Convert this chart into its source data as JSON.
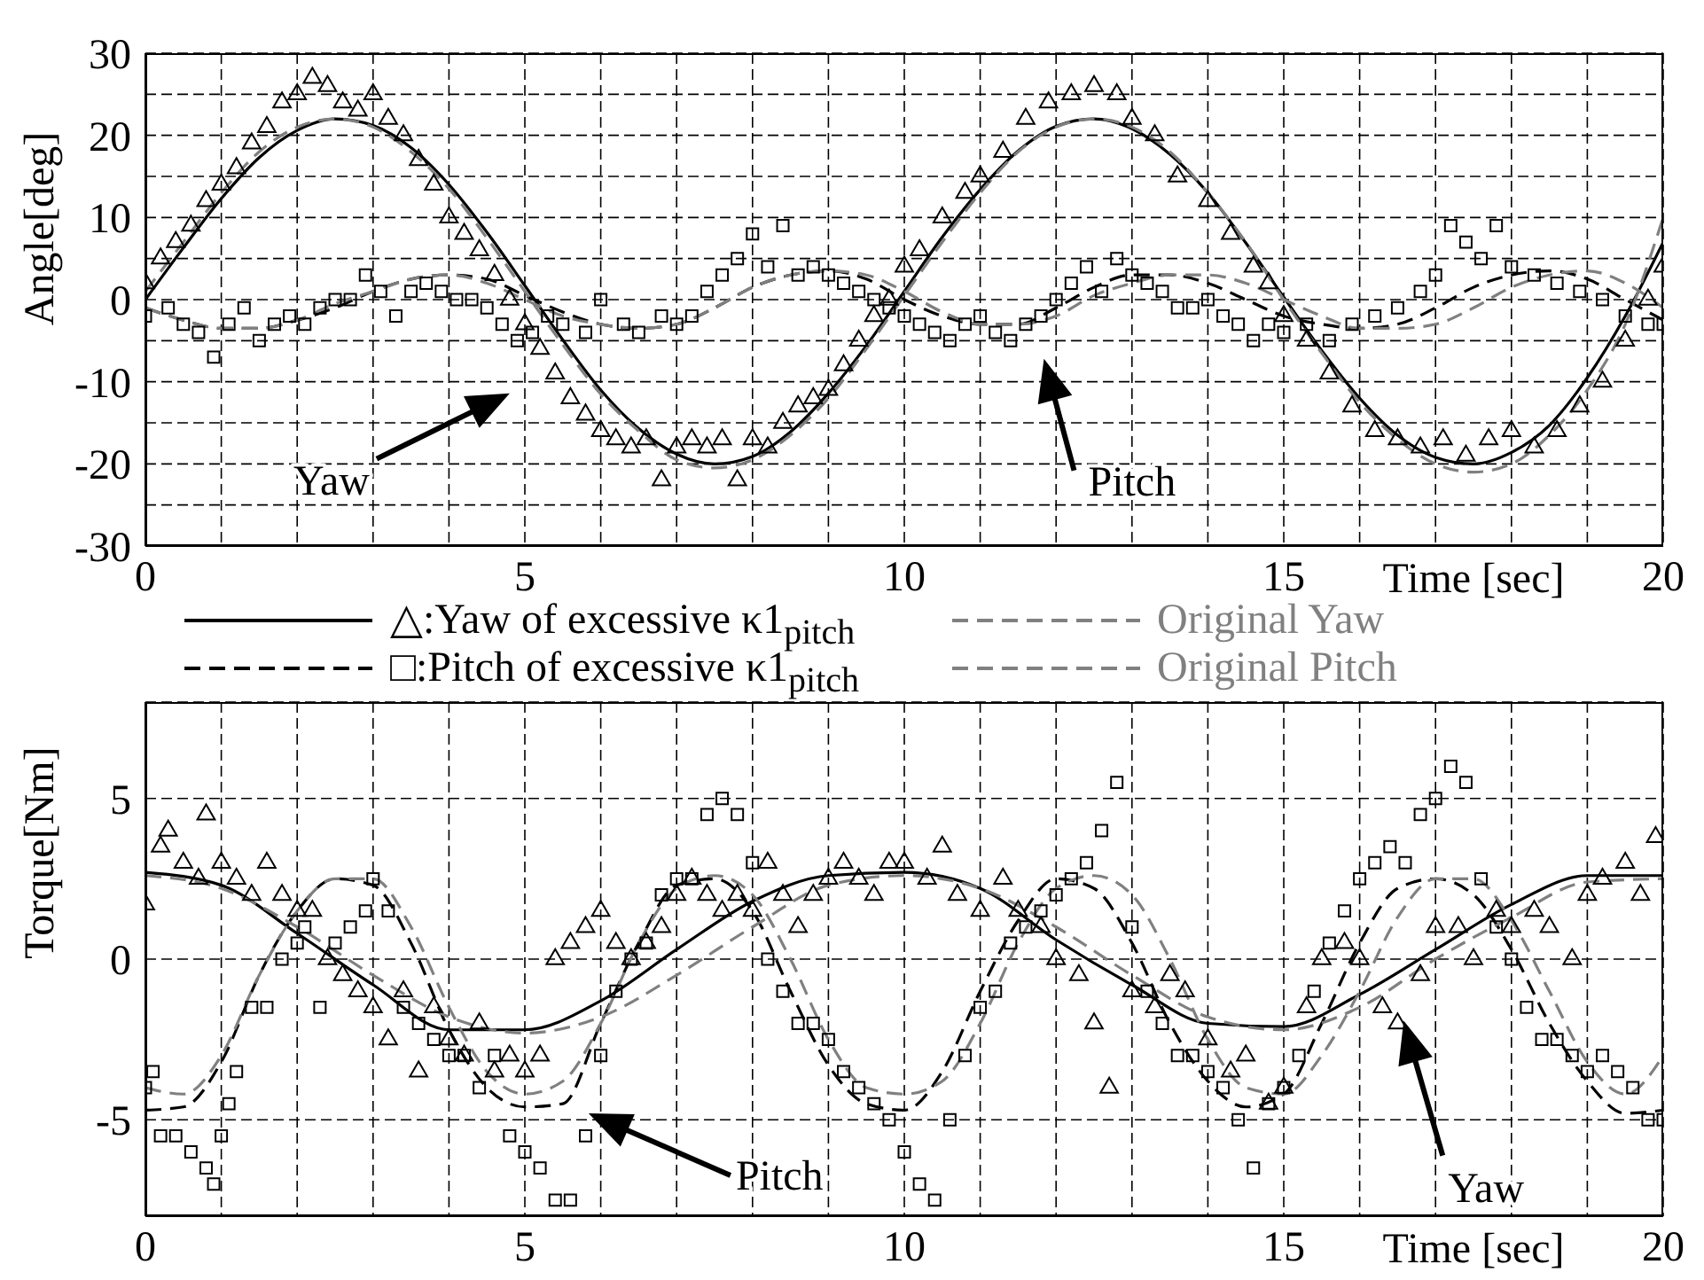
{
  "chart_data": [
    {
      "type": "line",
      "xlabel": "Time [sec]",
      "ylabel": "Angle[deg]",
      "xlim": [
        0,
        20
      ],
      "ylim": [
        -30,
        30
      ],
      "xticks": [
        0,
        {
          "value": 1,
          "label": null
        },
        {
          "value": 2,
          "label": null
        },
        {
          "value": 3,
          "label": null
        },
        {
          "value": 4,
          "label": null
        },
        5,
        {
          "value": 6,
          "label": null
        },
        {
          "value": 7,
          "label": null
        },
        {
          "value": 8,
          "label": null
        },
        {
          "value": 9,
          "label": null
        },
        10,
        {
          "value": 11,
          "label": null
        },
        {
          "value": 12,
          "label": null
        },
        {
          "value": 13,
          "label": null
        },
        {
          "value": 14,
          "label": null
        },
        15,
        {
          "value": 16,
          "label": null
        },
        {
          "value": 17,
          "label": null
        },
        {
          "value": 18,
          "label": null
        },
        {
          "value": 19,
          "label": null
        },
        20
      ],
      "yticks": [
        -30,
        {
          "value": -25,
          "label": null
        },
        -20,
        {
          "value": -15,
          "label": null
        },
        -10,
        {
          "value": -5,
          "label": null
        },
        0,
        {
          "value": 5,
          "label": null
        },
        10,
        {
          "value": 15,
          "label": null
        },
        20,
        {
          "value": 25,
          "label": null
        },
        30
      ],
      "grid": true,
      "x": [
        0,
        0.5,
        1,
        1.5,
        2,
        2.5,
        3,
        3.5,
        4,
        4.5,
        5,
        5.5,
        6,
        6.5,
        7,
        7.5,
        8,
        8.5,
        9,
        9.5,
        10,
        10.5,
        11,
        11.5,
        12,
        12.5,
        13,
        13.5,
        14,
        14.5,
        15,
        15.5,
        16,
        16.5,
        17,
        17.5,
        18,
        18.5,
        19,
        19.5,
        20
      ],
      "series": [
        {
          "type": "scatter",
          "marker": "triangle",
          "color": "#000000",
          "x": [
            0,
            0.2,
            0.4,
            0.6,
            0.8,
            1,
            1.2,
            1.4,
            1.6,
            1.8,
            2,
            2.2,
            2.4,
            2.6,
            2.8,
            3,
            3.2,
            3.4,
            3.6,
            3.8,
            4,
            4.2,
            4.4,
            4.6,
            4.8,
            5,
            5.2,
            5.4,
            5.6,
            5.8,
            6,
            6.2,
            6.4,
            6.6,
            6.8,
            7,
            7.2,
            7.4,
            7.6,
            7.8,
            8,
            8.2,
            8.4,
            8.6,
            8.8,
            9,
            9.2,
            9.4,
            9.6,
            9.8,
            10,
            10.2,
            10.5,
            10.8,
            11,
            11.3,
            11.6,
            11.9,
            12.2,
            12.5,
            12.8,
            13,
            13.3,
            13.6,
            14,
            14.3,
            14.6,
            14.8,
            15,
            15.3,
            15.6,
            15.9,
            16.2,
            16.5,
            16.8,
            17.1,
            17.4,
            17.7,
            18,
            18.3,
            18.6,
            18.9,
            19.2,
            19.5,
            19.8,
            20
          ],
          "values": [
            2,
            5,
            7,
            9,
            12,
            14,
            16,
            19,
            21,
            24,
            25,
            27,
            26,
            24,
            23,
            25,
            22,
            20,
            17,
            14,
            10,
            8,
            6,
            3,
            0,
            -3,
            -6,
            -9,
            -12,
            -14,
            -16,
            -17,
            -18,
            -17,
            -22,
            -18,
            -17,
            -18,
            -17,
            -22,
            -17,
            -18,
            -15,
            -13,
            -12,
            -11,
            -8,
            -5,
            -2,
            0,
            4,
            6,
            10,
            13,
            15,
            18,
            22,
            24,
            25,
            26,
            25,
            22,
            20,
            15,
            12,
            8,
            4,
            2,
            -2,
            -5,
            -9,
            -13,
            -16,
            -17,
            -18,
            -17,
            -19,
            -17,
            -16,
            -18,
            -16,
            -13,
            -10,
            -5,
            0,
            4
          ]
        },
        {
          "type": "scatter",
          "marker": "square",
          "color": "#000000",
          "x": [
            0,
            0.3,
            0.5,
            0.7,
            0.9,
            1.1,
            1.3,
            1.5,
            1.7,
            1.9,
            2.1,
            2.3,
            2.5,
            2.7,
            2.9,
            3.1,
            3.3,
            3.5,
            3.7,
            3.9,
            4.1,
            4.3,
            4.5,
            4.7,
            4.9,
            5.1,
            5.3,
            5.5,
            5.8,
            6,
            6.3,
            6.5,
            6.8,
            7,
            7.2,
            7.4,
            7.6,
            7.8,
            8,
            8.2,
            8.4,
            8.6,
            8.8,
            9,
            9.2,
            9.4,
            9.6,
            9.8,
            10,
            10.2,
            10.4,
            10.6,
            10.8,
            11,
            11.2,
            11.4,
            11.6,
            11.8,
            12,
            12.2,
            12.4,
            12.6,
            12.8,
            13,
            13.2,
            13.4,
            13.6,
            13.8,
            14,
            14.2,
            14.4,
            14.6,
            14.8,
            15,
            15.3,
            15.6,
            15.9,
            16.2,
            16.5,
            16.8,
            17,
            17.2,
            17.4,
            17.6,
            17.8,
            18,
            18.3,
            18.6,
            18.9,
            19.2,
            19.5,
            19.8,
            20
          ],
          "values": [
            -2,
            -1,
            -3,
            -4,
            -7,
            -3,
            -1,
            -5,
            -3,
            -2,
            -3,
            -1,
            0,
            0,
            3,
            1,
            -2,
            1,
            2,
            1,
            0,
            0,
            -1,
            -3,
            -5,
            -4,
            -2,
            -3,
            -4,
            0,
            -3,
            -4,
            -2,
            -3,
            -2,
            1,
            3,
            5,
            8,
            4,
            9,
            3,
            4,
            3,
            2,
            1,
            0,
            -1,
            -2,
            -3,
            -4,
            -5,
            -3,
            -2,
            -4,
            -5,
            -3,
            -2,
            0,
            2,
            4,
            1,
            5,
            3,
            2,
            1,
            -1,
            -1,
            0,
            -2,
            -3,
            -5,
            -3,
            -4,
            -3,
            -5,
            -3,
            -2,
            -1,
            1,
            3,
            9,
            7,
            5,
            9,
            4,
            3,
            2,
            1,
            0,
            -2,
            -3,
            -3
          ]
        },
        {
          "type": "line",
          "color": "#000000",
          "line_style": "solid",
          "values": [
            0,
            6.3,
            12.3,
            17.3,
            20.6,
            22,
            21.2,
            18.5,
            14,
            8.2,
            1.7,
            -4.9,
            -11,
            -15.7,
            -18.8,
            -20,
            -19.1,
            -16.1,
            -11.4,
            -5.6,
            1,
            7.6,
            13.4,
            18.1,
            21.1,
            22,
            20.8,
            17.7,
            13,
            6.9,
            0.3,
            -6.2,
            -12,
            -16.5,
            -19.2,
            -20,
            -18.6,
            -15.3,
            -9.5,
            -2,
            7
          ]
        },
        {
          "type": "line",
          "color": "#000000",
          "line_style": "dashed",
          "values": [
            -1,
            -2.5,
            -3.5,
            -3.5,
            -2.5,
            -1,
            1,
            2.5,
            3,
            2.5,
            0.5,
            -1.5,
            -3,
            -3.5,
            -3,
            -1,
            1.5,
            3,
            3.5,
            2.5,
            0,
            -2,
            -3,
            -3,
            -1,
            1.5,
            3,
            3,
            2,
            0,
            -2,
            -3,
            -3.5,
            -3,
            -1,
            1.5,
            3,
            3.5,
            2.5,
            0,
            -2.5
          ]
        },
        {
          "type": "line",
          "color": "#808080",
          "line_style": "dashed",
          "values": [
            1,
            7,
            13,
            18,
            21,
            22,
            21,
            18,
            13.5,
            7.5,
            1,
            -5.5,
            -11.5,
            -16,
            -19.5,
            -20.5,
            -19.5,
            -16.5,
            -12,
            -6,
            0.5,
            7,
            13,
            18,
            21,
            22,
            21,
            18,
            13,
            7,
            0,
            -6.5,
            -12.5,
            -17,
            -20,
            -21,
            -20,
            -16.5,
            -11,
            -3,
            10
          ]
        },
        {
          "type": "line",
          "color": "#808080",
          "line_style": "dashed",
          "values": [
            -1,
            -2.5,
            -3.5,
            -3.5,
            -2.5,
            -0.5,
            1,
            2.5,
            3,
            2,
            0,
            -2,
            -3,
            -3.5,
            -3,
            -1,
            1.5,
            3,
            3.5,
            3,
            1,
            -1.5,
            -3,
            -3,
            -2,
            0.5,
            2,
            3,
            3,
            2,
            0,
            -2,
            -3.5,
            -3.5,
            -3,
            -1,
            1.5,
            3,
            3.5,
            2,
            -1
          ]
        }
      ],
      "annotations": [
        "Yaw",
        "Pitch"
      ]
    },
    {
      "type": "line",
      "xlabel": "Time [sec]",
      "ylabel": "Torque[Nm]",
      "xlim": [
        0,
        20
      ],
      "ylim": [
        -8,
        8
      ],
      "xticks": [
        0,
        {
          "value": 1,
          "label": null
        },
        {
          "value": 2,
          "label": null
        },
        {
          "value": 3,
          "label": null
        },
        {
          "value": 4,
          "label": null
        },
        5,
        {
          "value": 6,
          "label": null
        },
        {
          "value": 7,
          "label": null
        },
        {
          "value": 8,
          "label": null
        },
        {
          "value": 9,
          "label": null
        },
        10,
        {
          "value": 11,
          "label": null
        },
        {
          "value": 12,
          "label": null
        },
        {
          "value": 13,
          "label": null
        },
        {
          "value": 14,
          "label": null
        },
        15,
        {
          "value": 16,
          "label": null
        },
        {
          "value": 17,
          "label": null
        },
        {
          "value": 18,
          "label": null
        },
        {
          "value": 19,
          "label": null
        },
        20
      ],
      "yticks": [
        -5,
        0,
        5
      ],
      "grid": true,
      "legend": "top",
      "x": [
        0,
        0.5,
        1,
        1.5,
        2,
        2.5,
        3,
        3.5,
        4,
        4.5,
        5,
        5.5,
        6,
        6.5,
        7,
        7.5,
        8,
        8.5,
        9,
        9.5,
        10,
        10.5,
        11,
        11.5,
        12,
        12.5,
        13,
        13.5,
        14,
        14.5,
        15,
        15.5,
        16,
        16.5,
        17,
        17.5,
        18,
        18.5,
        19,
        19.5,
        20
      ],
      "series": [
        {
          "type": "scatter",
          "marker": "triangle",
          "color": "#000000",
          "x": [
            0,
            0.2,
            0.3,
            0.5,
            0.7,
            0.8,
            1,
            1.2,
            1.4,
            1.6,
            1.8,
            2,
            2.2,
            2.4,
            2.6,
            2.8,
            3,
            3.2,
            3.4,
            3.6,
            3.8,
            4,
            4.2,
            4.4,
            4.6,
            4.8,
            5,
            5.2,
            5.4,
            5.6,
            5.8,
            6,
            6.2,
            6.4,
            6.6,
            6.8,
            7,
            7.2,
            7.4,
            7.6,
            7.8,
            8,
            8.2,
            8.4,
            8.6,
            8.8,
            9,
            9.2,
            9.4,
            9.6,
            9.8,
            10,
            10.3,
            10.5,
            10.7,
            11,
            11.3,
            11.5,
            11.8,
            12,
            12.3,
            12.5,
            12.7,
            13,
            13.3,
            13.5,
            13.7,
            14,
            14.3,
            14.5,
            14.8,
            15,
            15.3,
            15.5,
            15.8,
            16,
            16.3,
            16.5,
            16.8,
            17,
            17.3,
            17.5,
            17.8,
            18,
            18.3,
            18.5,
            18.8,
            19,
            19.2,
            19.5,
            19.7,
            19.9
          ],
          "values": [
            1.7,
            3.5,
            4,
            3,
            2.5,
            4.5,
            3,
            2.5,
            2,
            3,
            2,
            1.5,
            1.5,
            0,
            -0.5,
            -1,
            -1.5,
            -2.5,
            -1,
            -3.5,
            -1.5,
            -2.5,
            -3,
            -2,
            -3.5,
            -3,
            -3.5,
            -3,
            0,
            0.5,
            1,
            1.5,
            0.5,
            0,
            0.5,
            1,
            2,
            2.5,
            2,
            1.5,
            2,
            1.5,
            3,
            2,
            1,
            2,
            2.5,
            3,
            2.5,
            2,
            3,
            3,
            2.5,
            3.5,
            2,
            1.5,
            2.5,
            1.5,
            1,
            0,
            -0.5,
            -2,
            -4,
            -1,
            -1.5,
            -0.5,
            -1,
            -2.5,
            -3.5,
            -3,
            -4.5,
            -4,
            -1.5,
            0,
            0.5,
            0,
            -1.5,
            -2,
            -0.5,
            1,
            1,
            0,
            1.5,
            1,
            1.5,
            1,
            0,
            2,
            2.5,
            3,
            2,
            3.8
          ]
        },
        {
          "type": "scatter",
          "marker": "square",
          "color": "#000000",
          "x": [
            0,
            0.1,
            0.2,
            0.4,
            0.6,
            0.8,
            0.9,
            1,
            1.1,
            1.2,
            1.4,
            1.6,
            1.8,
            2,
            2.1,
            2.3,
            2.5,
            2.7,
            2.9,
            3,
            3.2,
            3.4,
            3.6,
            3.8,
            4,
            4.2,
            4.4,
            4.6,
            4.8,
            5,
            5.2,
            5.4,
            5.6,
            5.8,
            6,
            6.2,
            6.4,
            6.6,
            6.8,
            7,
            7.2,
            7.4,
            7.6,
            7.8,
            8,
            8.2,
            8.4,
            8.6,
            8.8,
            9,
            9.2,
            9.4,
            9.6,
            9.8,
            10,
            10.2,
            10.4,
            10.6,
            10.8,
            11,
            11.2,
            11.4,
            11.6,
            11.8,
            12,
            12.2,
            12.4,
            12.6,
            12.8,
            13,
            13.2,
            13.4,
            13.6,
            13.8,
            14,
            14.2,
            14.4,
            14.6,
            14.8,
            15,
            15.2,
            15.4,
            15.6,
            15.8,
            16,
            16.2,
            16.4,
            16.6,
            16.8,
            17,
            17.2,
            17.4,
            17.6,
            17.8,
            18,
            18.2,
            18.4,
            18.6,
            18.8,
            19,
            19.2,
            19.4,
            19.6,
            19.8,
            20
          ],
          "values": [
            -4,
            -3.5,
            -5.5,
            -5.5,
            -6,
            -6.5,
            -7,
            -5.5,
            -4.5,
            -3.5,
            -1.5,
            -1.5,
            0,
            0.5,
            1,
            -1.5,
            0.5,
            1,
            1.5,
            2.5,
            1.5,
            -1.5,
            -2,
            -2.5,
            -3,
            -3,
            -4,
            -3,
            -5.5,
            -6,
            -6.5,
            -7.5,
            -7.5,
            -5.5,
            -3,
            -1,
            0,
            0.5,
            2,
            2.5,
            2.5,
            4.5,
            5,
            4.5,
            3,
            0,
            -1,
            -2,
            -2,
            -2.5,
            -3.5,
            -4,
            -4.5,
            -5,
            -6,
            -7,
            -7.5,
            -5,
            -3,
            -1.5,
            -1,
            0.5,
            1,
            1.5,
            2,
            2.5,
            3,
            4,
            5.5,
            1,
            -1,
            -2,
            -3,
            -3,
            -3.5,
            -4,
            -5,
            -6.5,
            -4.5,
            -4,
            -3,
            -1,
            0.5,
            1.5,
            2.5,
            3,
            3.5,
            3,
            4.5,
            5,
            6,
            5.5,
            2.5,
            1,
            0,
            -1.5,
            -2.5,
            -2.5,
            -3,
            -3.5,
            -3,
            -3.5,
            -4,
            -5,
            -5
          ]
        },
        {
          "type": "line",
          "name": "△:Yaw of excessive κ1$_{pitch}$",
          "color": "#000000",
          "line_style": "solid",
          "x": [
            0,
            1,
            2,
            3,
            4,
            5,
            6,
            7,
            8,
            9,
            10,
            11,
            12,
            13,
            14,
            15,
            16,
            17,
            18,
            19,
            20
          ],
          "values": [
            2.7,
            2.3,
            0.8,
            -0.8,
            -2.2,
            -2.2,
            -1.3,
            0.3,
            1.8,
            2.6,
            2.7,
            2.2,
            0.6,
            -0.8,
            -2,
            -2.1,
            -1.1,
            0.3,
            1.7,
            2.6,
            2.6
          ]
        },
        {
          "type": "line",
          "name": "□:Pitch of excessive κ1$_{pitch}$",
          "color": "#000000",
          "line_style": "dashed",
          "values": [
            -4.7,
            -4.6,
            -3.2,
            -0.5,
            1.5,
            2.5,
            2.3,
            0.5,
            -2.2,
            -4,
            -4.6,
            -4.5,
            -2,
            0.5,
            2.3,
            2.5,
            1.5,
            -1,
            -3.3,
            -4.5,
            -4.7,
            -3.5,
            -1,
            1.2,
            2.5,
            2.2,
            0.5,
            -2,
            -3.8,
            -4.6,
            -4.2,
            -2,
            0.5,
            2.2,
            2.5,
            2,
            0.3,
            -2,
            -3.8,
            -4.8,
            -4.7
          ]
        },
        {
          "type": "line",
          "name": "Original Yaw",
          "color": "#808080",
          "line_style": "dashed",
          "x": [
            0,
            1,
            2,
            3,
            4,
            5,
            6,
            7,
            8,
            9,
            10,
            11,
            12,
            13,
            14,
            15,
            16,
            17,
            18,
            19,
            20
          ],
          "values": [
            2.6,
            2.2,
            1,
            -0.5,
            -1.8,
            -2.3,
            -1.8,
            -0.5,
            1,
            2.3,
            2.6,
            2.2,
            1,
            -0.5,
            -1.8,
            -2.2,
            -1.5,
            0,
            1.3,
            2.4,
            2.5
          ]
        },
        {
          "type": "line",
          "name": "Original Pitch",
          "color": "#808080",
          "line_style": "dashed",
          "values": [
            -4,
            -4.2,
            -3,
            -0.5,
            1.5,
            2.5,
            2.5,
            1,
            -1.5,
            -3.5,
            -4.2,
            -3.8,
            -2,
            0.5,
            2.2,
            2.6,
            2,
            0,
            -2.5,
            -4,
            -4.2,
            -3.8,
            -2,
            0.5,
            2.2,
            2.6,
            2,
            0,
            -2.5,
            -4,
            -4.2,
            -3,
            -1,
            1.3,
            2.5,
            2.5,
            1.2,
            -1,
            -3.2,
            -4.2,
            -3
          ]
        }
      ],
      "annotations": [
        "Pitch",
        "Yaw"
      ]
    }
  ]
}
